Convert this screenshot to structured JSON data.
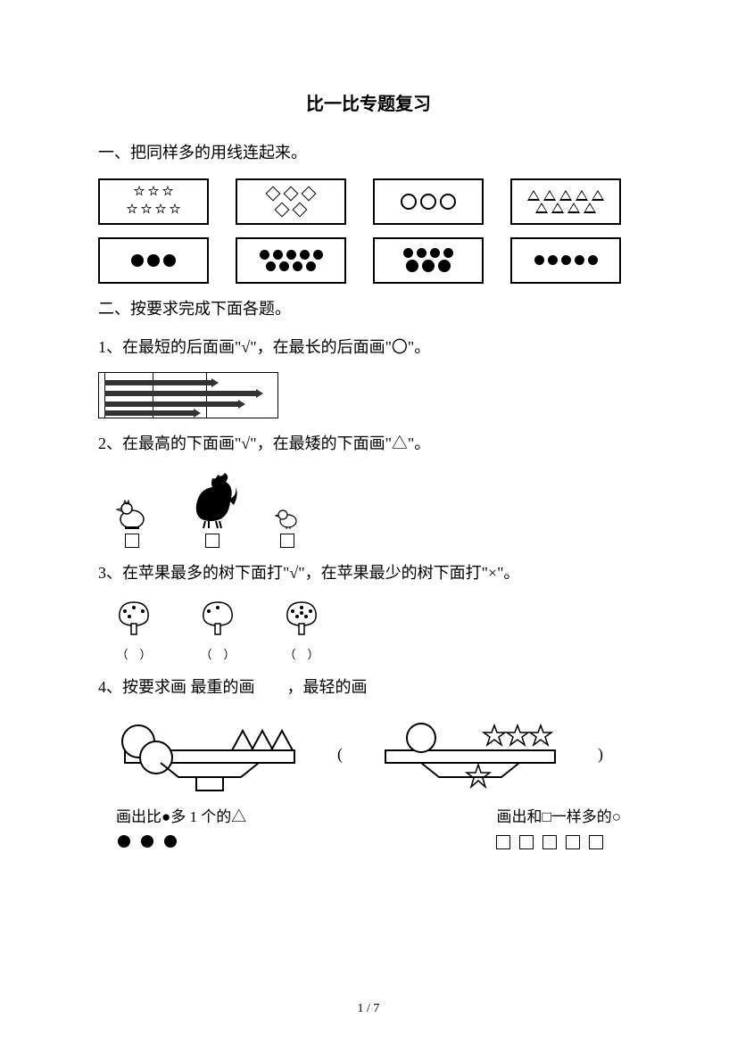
{
  "title": "比一比专题复习",
  "q1": {
    "heading": "一、把同样多的用线连起来。",
    "top": [
      {
        "shape": "star",
        "rows": [
          3,
          4
        ]
      },
      {
        "shape": "diamond",
        "rows": [
          3,
          2
        ]
      },
      {
        "shape": "circle",
        "rows": [
          3
        ]
      },
      {
        "shape": "triangle",
        "rows": [
          5,
          4
        ]
      }
    ],
    "bottom": [
      {
        "shape": "dot",
        "rows": [
          3
        ]
      },
      {
        "shape": "dot",
        "rows": [
          5,
          4
        ]
      },
      {
        "shape": "dot",
        "rows": [
          4,
          3
        ]
      },
      {
        "shape": "dot",
        "rows": [
          5
        ]
      }
    ]
  },
  "q2": {
    "heading": "二、按要求完成下面各题。",
    "p1": {
      "text": "1、在最短的后面画\"√\"，在最长的后面画\"〇\"。",
      "pencils": [
        {
          "len": 120,
          "y": 8
        },
        {
          "len": 170,
          "y": 20
        },
        {
          "len": 150,
          "y": 32
        },
        {
          "len": 100,
          "y": 42
        }
      ]
    },
    "p2": {
      "text": "2、在最高的下面画\"√\"，在最矮的下面画\"△\"。",
      "animals": [
        "hen",
        "rooster",
        "chick"
      ]
    },
    "p3": {
      "text": "3、在苹果最多的树下面打\"√\"，在苹果最少的树下面打\"×\"。",
      "trees": [
        {
          "apples": 4
        },
        {
          "apples": 2
        },
        {
          "apples": 6
        }
      ],
      "paren": "（　）"
    },
    "p4": {
      "text": "4、按要求画  最重的画　　，最轻的画",
      "balance_left": {
        "left_shape": "2circles",
        "right_shape": "3triangles"
      },
      "balance_right": {
        "left_shape": "1circle",
        "right_shape": "3stars_over_1star"
      },
      "paren_left": "(",
      "paren_right": ")"
    }
  },
  "q4b": {
    "left_label": "画出比●多 1 个的△",
    "right_label": "画出和□一样多的○",
    "dots": 3,
    "squares": 5
  },
  "page_num": "1 / 7",
  "colors": {
    "fg": "#000000",
    "bg": "#ffffff"
  }
}
